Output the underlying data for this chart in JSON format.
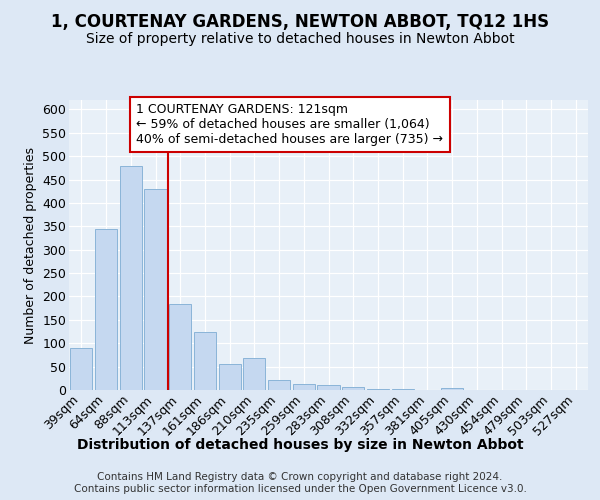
{
  "title": "1, COURTENAY GARDENS, NEWTON ABBOT, TQ12 1HS",
  "subtitle": "Size of property relative to detached houses in Newton Abbot",
  "xlabel": "Distribution of detached houses by size in Newton Abbot",
  "ylabel": "Number of detached properties",
  "categories": [
    "39sqm",
    "64sqm",
    "88sqm",
    "113sqm",
    "137sqm",
    "161sqm",
    "186sqm",
    "210sqm",
    "235sqm",
    "259sqm",
    "283sqm",
    "308sqm",
    "332sqm",
    "357sqm",
    "381sqm",
    "405sqm",
    "430sqm",
    "454sqm",
    "479sqm",
    "503sqm",
    "527sqm"
  ],
  "values": [
    90,
    345,
    478,
    430,
    183,
    125,
    55,
    68,
    22,
    12,
    10,
    6,
    2,
    2,
    1,
    5,
    1,
    1,
    1,
    1,
    1
  ],
  "bar_color": "#c5d8f0",
  "bar_edge_color": "#8ab4d8",
  "red_line_x": 3.5,
  "red_line_label": "1 COURTENAY GARDENS: 121sqm",
  "annotation_line1": "← 59% of detached houses are smaller (1,064)",
  "annotation_line2": "40% of semi-detached houses are larger (735) →",
  "annotation_box_facecolor": "#ffffff",
  "annotation_box_edgecolor": "#cc0000",
  "vline_color": "#cc0000",
  "ylim": [
    0,
    620
  ],
  "yticks": [
    0,
    50,
    100,
    150,
    200,
    250,
    300,
    350,
    400,
    450,
    500,
    550,
    600
  ],
  "bg_color": "#dde8f5",
  "plot_bg": "#e8f0f8",
  "footer": "Contains HM Land Registry data © Crown copyright and database right 2024.\nContains public sector information licensed under the Open Government Licence v3.0.",
  "title_fontsize": 12,
  "subtitle_fontsize": 10,
  "xlabel_fontsize": 10,
  "ylabel_fontsize": 9,
  "tick_fontsize": 9,
  "annot_fontsize": 9,
  "footer_fontsize": 7.5
}
